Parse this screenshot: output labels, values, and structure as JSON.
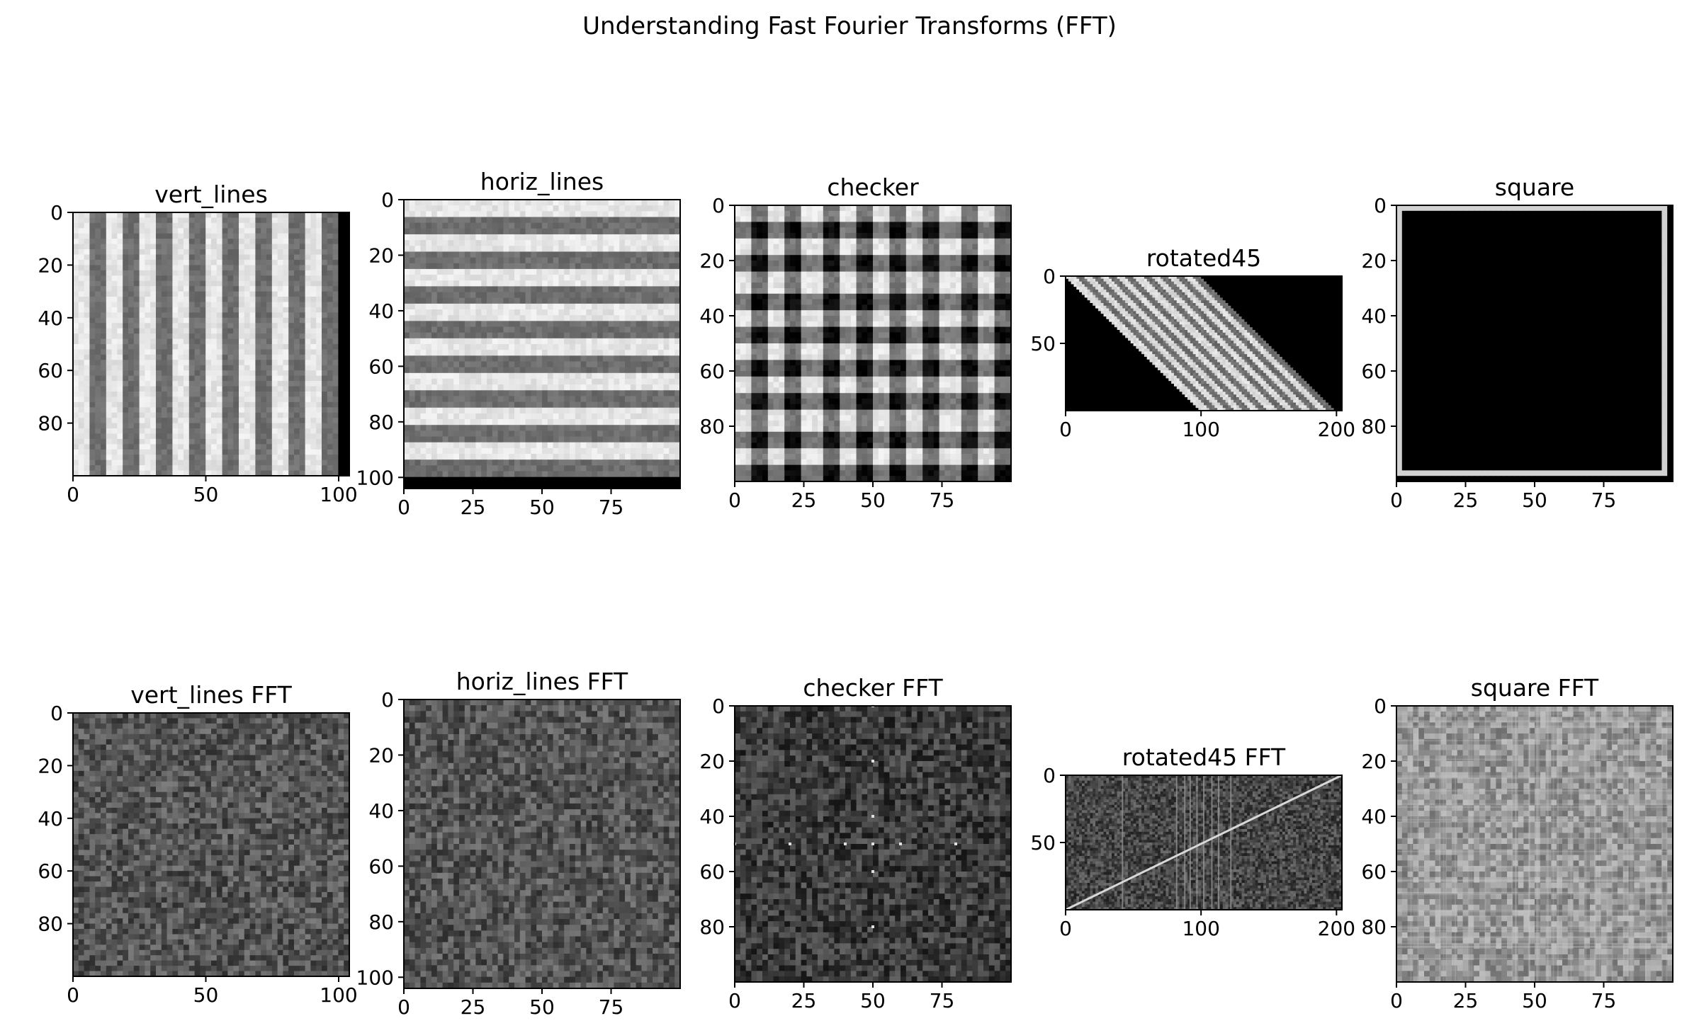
{
  "figure": {
    "suptitle": "Understanding Fast Fourier Transforms (FFT)"
  },
  "chart_data": [
    {
      "type": "heatmap",
      "title": "vert_lines",
      "pattern": "vertical-stripes",
      "colormap": "gray",
      "xlim": [
        0,
        104
      ],
      "ylim": [
        100,
        0
      ],
      "xticks": [
        0,
        50,
        100
      ],
      "yticks": [
        0,
        20,
        40,
        60,
        80
      ],
      "xticklabels": [
        "0",
        "50",
        "100"
      ],
      "yticklabels": [
        "0",
        "20",
        "40",
        "60",
        "80"
      ]
    },
    {
      "type": "heatmap",
      "title": "horiz_lines",
      "pattern": "horizontal-stripes",
      "colormap": "gray",
      "xlim": [
        0,
        100
      ],
      "ylim": [
        104,
        0
      ],
      "xticks": [
        0,
        25,
        50,
        75
      ],
      "yticks": [
        0,
        20,
        40,
        60,
        80,
        100
      ],
      "xticklabels": [
        "0",
        "25",
        "50",
        "75"
      ],
      "yticklabels": [
        "0",
        "20",
        "40",
        "60",
        "80",
        "100"
      ]
    },
    {
      "type": "heatmap",
      "title": "checker",
      "pattern": "checkerboard",
      "colormap": "gray",
      "xlim": [
        0,
        100
      ],
      "ylim": [
        100,
        0
      ],
      "xticks": [
        0,
        25,
        50,
        75
      ],
      "yticks": [
        0,
        20,
        40,
        60,
        80
      ],
      "xticklabels": [
        "0",
        "25",
        "50",
        "75"
      ],
      "yticklabels": [
        "0",
        "20",
        "40",
        "60",
        "80"
      ]
    },
    {
      "type": "heatmap",
      "title": "rotated45",
      "pattern": "sheared-stripes",
      "colormap": "gray",
      "xlim": [
        0,
        204
      ],
      "ylim": [
        100,
        0
      ],
      "xticks": [
        0,
        100,
        200
      ],
      "yticks": [
        0,
        50
      ],
      "xticklabels": [
        "0",
        "100",
        "200"
      ],
      "yticklabels": [
        "0",
        "50"
      ]
    },
    {
      "type": "heatmap",
      "title": "square",
      "pattern": "square-outline",
      "colormap": "gray",
      "xlim": [
        0,
        100
      ],
      "ylim": [
        100,
        0
      ],
      "xticks": [
        0,
        25,
        50,
        75
      ],
      "yticks": [
        0,
        20,
        40,
        60,
        80
      ],
      "xticklabels": [
        "0",
        "25",
        "50",
        "75"
      ],
      "yticklabels": [
        "0",
        "20",
        "40",
        "60",
        "80"
      ]
    },
    {
      "type": "heatmap",
      "title": "vert_lines FFT",
      "pattern": "fft-horizontal-line",
      "colormap": "gray",
      "xlim": [
        0,
        104
      ],
      "ylim": [
        100,
        0
      ],
      "xticks": [
        0,
        50,
        100
      ],
      "yticks": [
        0,
        20,
        40,
        60,
        80
      ],
      "xticklabels": [
        "0",
        "50",
        "100"
      ],
      "yticklabels": [
        "0",
        "20",
        "40",
        "60",
        "80"
      ]
    },
    {
      "type": "heatmap",
      "title": "horiz_lines FFT",
      "pattern": "fft-vertical-line",
      "colormap": "gray",
      "xlim": [
        0,
        100
      ],
      "ylim": [
        104,
        0
      ],
      "xticks": [
        0,
        25,
        50,
        75
      ],
      "yticks": [
        0,
        20,
        40,
        60,
        80,
        100
      ],
      "xticklabels": [
        "0",
        "25",
        "50",
        "75"
      ],
      "yticklabels": [
        "0",
        "20",
        "40",
        "60",
        "80",
        "100"
      ]
    },
    {
      "type": "heatmap",
      "title": "checker FFT",
      "pattern": "fft-dots",
      "colormap": "gray",
      "xlim": [
        0,
        100
      ],
      "ylim": [
        100,
        0
      ],
      "xticks": [
        0,
        25,
        50,
        75
      ],
      "yticks": [
        0,
        20,
        40,
        60,
        80
      ],
      "xticklabels": [
        "0",
        "25",
        "50",
        "75"
      ],
      "yticklabels": [
        "0",
        "20",
        "40",
        "60",
        "80"
      ]
    },
    {
      "type": "heatmap",
      "title": "rotated45 FFT",
      "pattern": "fft-diagonal",
      "colormap": "gray",
      "xlim": [
        0,
        204
      ],
      "ylim": [
        100,
        0
      ],
      "xticks": [
        0,
        100,
        200
      ],
      "yticks": [
        0,
        50
      ],
      "xticklabels": [
        "0",
        "100",
        "200"
      ],
      "yticklabels": [
        "0",
        "50"
      ]
    },
    {
      "type": "heatmap",
      "title": "square FFT",
      "pattern": "fft-cross",
      "colormap": "gray",
      "xlim": [
        0,
        100
      ],
      "ylim": [
        100,
        0
      ],
      "xticks": [
        0,
        25,
        50,
        75
      ],
      "yticks": [
        0,
        20,
        40,
        60,
        80
      ],
      "xticklabels": [
        "0",
        "25",
        "50",
        "75"
      ],
      "yticklabels": [
        "0",
        "20",
        "40",
        "60",
        "80"
      ]
    }
  ]
}
